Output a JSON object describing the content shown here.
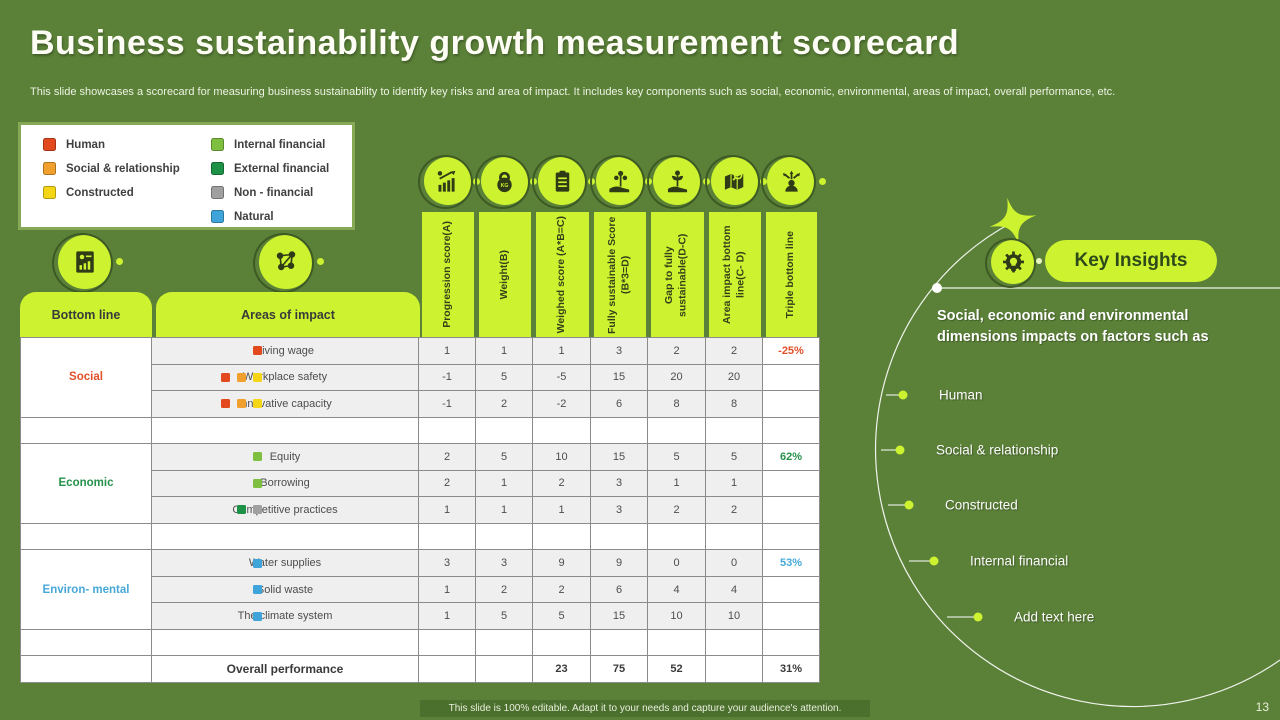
{
  "slide": {
    "title": "Business sustainability growth measurement scorecard",
    "subtitle": "This slide showcases a scorecard for measuring  business sustainability to identify key risks and area of impact. It includes key components such as social, economic, environmental, areas of impact, overall performance, etc.",
    "footer": "This slide is 100% editable.  Adapt it to your needs and capture your audience's attention.",
    "page_number": "13"
  },
  "colors": {
    "background": "#5b8138",
    "accent": "#cdf22f",
    "footer_bar": "#4b6f2d",
    "capital_colors": {
      "human": "#e2491f",
      "social": "#f2a02d",
      "constructed": "#f4d616",
      "internal": "#7fbf3f",
      "external": "#1d9247",
      "nonfinancial": "#a0a0a0",
      "natural": "#3fa4da"
    }
  },
  "legend": {
    "columns": [
      [
        {
          "label": "Human",
          "key": "human"
        },
        {
          "label": "Social & relationship",
          "key": "social"
        },
        {
          "label": "Constructed",
          "key": "constructed"
        }
      ],
      [
        {
          "label": "Internal financial",
          "key": "internal"
        },
        {
          "label": "External financial",
          "key": "external"
        },
        {
          "label": "Non - financial",
          "key": "nonfinancial"
        },
        {
          "label": "Natural",
          "key": "natural"
        }
      ]
    ]
  },
  "table": {
    "corner_headers": [
      "Bottom line",
      "Areas  of impact"
    ],
    "corner_icons": [
      "report-card-icon",
      "money-network-icon"
    ],
    "columns": [
      {
        "label": "Progression score(A)",
        "icon": "growth-chart-icon"
      },
      {
        "label": "Weight(B)",
        "icon": "kettlebell-icon"
      },
      {
        "label": "Weighed score (A*B=C)",
        "icon": "checklist-icon"
      },
      {
        "label": "Fully sustainable Score (B*3=D)",
        "icon": "money-plant-hand-icon"
      },
      {
        "label": "Gap to fully sustainable(D-C)",
        "icon": "growth-hand-icon"
      },
      {
        "label": "Area impact bottom line(C- D)",
        "icon": "map-magnifier-icon"
      },
      {
        "label": "Triple bottom line",
        "icon": "decision-arrows-icon"
      }
    ],
    "groups": [
      {
        "name": "Social",
        "color": "#e2502a",
        "rows": [
          {
            "label": "Living wage",
            "markers": [
              "human"
            ],
            "values": [
              "1",
              "1",
              "1",
              "3",
              "2",
              "2"
            ],
            "pct": "-25%",
            "pct_color": "#e2502a"
          },
          {
            "label": "Workplace safety",
            "markers": [
              "human",
              "social",
              "constructed"
            ],
            "values": [
              "-1",
              "5",
              "-5",
              "15",
              "20",
              "20"
            ],
            "pct": "",
            "pct_color": ""
          },
          {
            "label": "Innovative  capacity",
            "markers": [
              "human",
              "social",
              "constructed"
            ],
            "values": [
              "-1",
              "2",
              "-2",
              "6",
              "8",
              "8"
            ],
            "pct": "",
            "pct_color": ""
          }
        ]
      },
      {
        "name": "Economic",
        "color": "#27914b",
        "rows": [
          {
            "label": "Equity",
            "markers": [
              "internal"
            ],
            "values": [
              "2",
              "5",
              "10",
              "15",
              "5",
              "5"
            ],
            "pct": "62%",
            "pct_color": "#27914b"
          },
          {
            "label": "Borrowing",
            "markers": [
              "internal"
            ],
            "values": [
              "2",
              "1",
              "2",
              "3",
              "1",
              "1"
            ],
            "pct": "",
            "pct_color": ""
          },
          {
            "label": "Competitive practices",
            "markers": [
              "external",
              "nonfinancial"
            ],
            "values": [
              "1",
              "1",
              "1",
              "3",
              "2",
              "2"
            ],
            "pct": "",
            "pct_color": ""
          }
        ]
      },
      {
        "name": "Environ-  mental",
        "color": "#47a8d8",
        "rows": [
          {
            "label": "Water supplies",
            "markers": [
              "natural"
            ],
            "values": [
              "3",
              "3",
              "9",
              "9",
              "0",
              "0"
            ],
            "pct": "53%",
            "pct_color": "#47a8d8"
          },
          {
            "label": "Solid waste",
            "markers": [
              "natural"
            ],
            "values": [
              "1",
              "2",
              "2",
              "6",
              "4",
              "4"
            ],
            "pct": "",
            "pct_color": ""
          },
          {
            "label": "The climate system",
            "markers": [
              "natural"
            ],
            "values": [
              "1",
              "5",
              "5",
              "15",
              "10",
              "10"
            ],
            "pct": "",
            "pct_color": ""
          }
        ]
      }
    ],
    "overall_row": {
      "label": "Overall performance",
      "values": [
        "",
        "",
        "23",
        "75",
        "52",
        ""
      ],
      "pct": "31%"
    }
  },
  "insights": {
    "title": "Key Insights",
    "icon": "gear-bulb-icon",
    "lead": "Social, economic and environmental dimensions impacts on factors such as",
    "items": [
      "Human",
      "Social & relationship",
      "Constructed",
      "Internal financial",
      "Add text here"
    ]
  }
}
